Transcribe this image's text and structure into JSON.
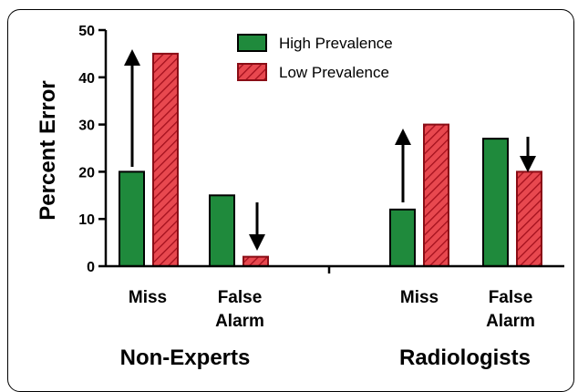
{
  "chart_data": {
    "type": "bar",
    "ylabel": "Percent Error",
    "ylim": [
      0,
      50
    ],
    "yticks": [
      "0",
      "10",
      "20",
      "30",
      "40",
      "50"
    ],
    "legend_position": "top-center",
    "series": [
      {
        "name": "High Prevalence",
        "color": "#1f8a3c",
        "fill": "solid",
        "values": [
          20,
          15,
          12,
          27
        ]
      },
      {
        "name": "Low Prevalence",
        "color": "#e8484f",
        "fill": "hatched",
        "values": [
          45,
          2,
          30,
          20
        ]
      }
    ],
    "categories": [
      {
        "label_line1": "Miss",
        "label_line2": ""
      },
      {
        "label_line1": "False",
        "label_line2": "Alarm"
      },
      {
        "label_line1": "Miss",
        "label_line2": ""
      },
      {
        "label_line1": "False",
        "label_line2": "Alarm"
      }
    ],
    "groups": [
      "Non-Experts",
      "Radiologists"
    ],
    "annotations": [
      "arrow-up",
      "arrow-down",
      "arrow-up",
      "arrow-down"
    ]
  }
}
